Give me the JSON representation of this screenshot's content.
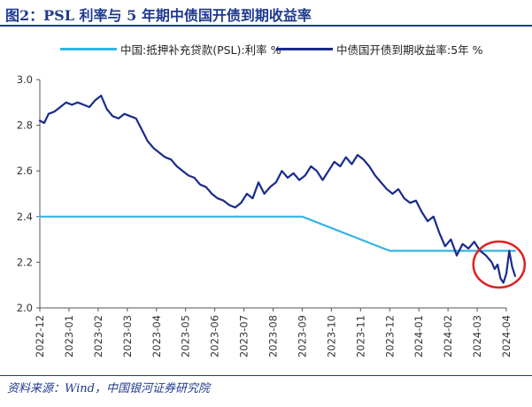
{
  "header": {
    "title": "图2：PSL 利率与 5 年期中债国开债到期收益率"
  },
  "footer": {
    "source": "资料来源：Wind，中国银河证券研究院"
  },
  "colors": {
    "psl": "#33b5e5",
    "cdb": "#1a2b8c",
    "highlight": "#e02020",
    "axis": "#555555"
  },
  "chart_data": {
    "type": "line",
    "xlabel": "",
    "ylabel": "",
    "ylim": [
      2.0,
      3.0
    ],
    "yticks": [
      "2.0",
      "2.2",
      "2.4",
      "2.6",
      "2.8",
      "3.0"
    ],
    "xticks": [
      "2022-12",
      "2023-01",
      "2023-02",
      "2023-03",
      "2023-04",
      "2023-05",
      "2023-06",
      "2023-07",
      "2023-08",
      "2023-09",
      "2023-10",
      "2023-11",
      "2023-12",
      "2024-01",
      "2024-02",
      "2024-03",
      "2024-04"
    ],
    "grid": false,
    "legend_position": "top",
    "annotation": "red circle around the final segment (Mar–Apr 2024)",
    "series": [
      {
        "name": "中国:抵押补充贷款(PSL):利率 %",
        "style": "light-blue line",
        "x": [
          0,
          9,
          12,
          16.3
        ],
        "values": [
          2.4,
          2.4,
          2.25,
          2.25
        ]
      },
      {
        "name": "中债国开债到期收益率:5年 %",
        "style": "dark-navy line",
        "x": [
          0,
          0.15,
          0.3,
          0.5,
          0.7,
          0.9,
          1.1,
          1.3,
          1.5,
          1.7,
          1.9,
          2.1,
          2.3,
          2.5,
          2.7,
          2.9,
          3.1,
          3.3,
          3.5,
          3.7,
          3.9,
          4.1,
          4.3,
          4.5,
          4.7,
          4.9,
          5.1,
          5.3,
          5.5,
          5.7,
          5.9,
          6.1,
          6.3,
          6.5,
          6.7,
          6.9,
          7.1,
          7.3,
          7.5,
          7.7,
          7.9,
          8.1,
          8.3,
          8.5,
          8.7,
          8.9,
          9.1,
          9.3,
          9.5,
          9.7,
          9.9,
          10.1,
          10.3,
          10.5,
          10.7,
          10.9,
          11.1,
          11.3,
          11.5,
          11.7,
          11.9,
          12.1,
          12.3,
          12.5,
          12.7,
          12.9,
          13.1,
          13.3,
          13.5,
          13.7,
          13.9,
          14.1,
          14.3,
          14.5,
          14.7,
          14.9,
          15.1,
          15.3,
          15.5,
          15.6,
          15.7,
          15.8,
          15.9,
          16.0,
          16.1,
          16.2,
          16.3
        ],
        "values": [
          2.82,
          2.81,
          2.85,
          2.86,
          2.88,
          2.9,
          2.89,
          2.9,
          2.89,
          2.88,
          2.91,
          2.93,
          2.87,
          2.84,
          2.83,
          2.85,
          2.84,
          2.83,
          2.78,
          2.73,
          2.7,
          2.68,
          2.66,
          2.65,
          2.62,
          2.6,
          2.58,
          2.57,
          2.54,
          2.53,
          2.5,
          2.48,
          2.47,
          2.45,
          2.44,
          2.46,
          2.5,
          2.48,
          2.55,
          2.5,
          2.53,
          2.55,
          2.6,
          2.57,
          2.59,
          2.56,
          2.58,
          2.62,
          2.6,
          2.56,
          2.6,
          2.64,
          2.62,
          2.66,
          2.63,
          2.67,
          2.65,
          2.62,
          2.58,
          2.55,
          2.52,
          2.5,
          2.52,
          2.48,
          2.46,
          2.47,
          2.42,
          2.38,
          2.4,
          2.33,
          2.27,
          2.3,
          2.23,
          2.28,
          2.26,
          2.29,
          2.25,
          2.23,
          2.2,
          2.17,
          2.19,
          2.13,
          2.11,
          2.15,
          2.25,
          2.18,
          2.14
        ]
      }
    ]
  }
}
